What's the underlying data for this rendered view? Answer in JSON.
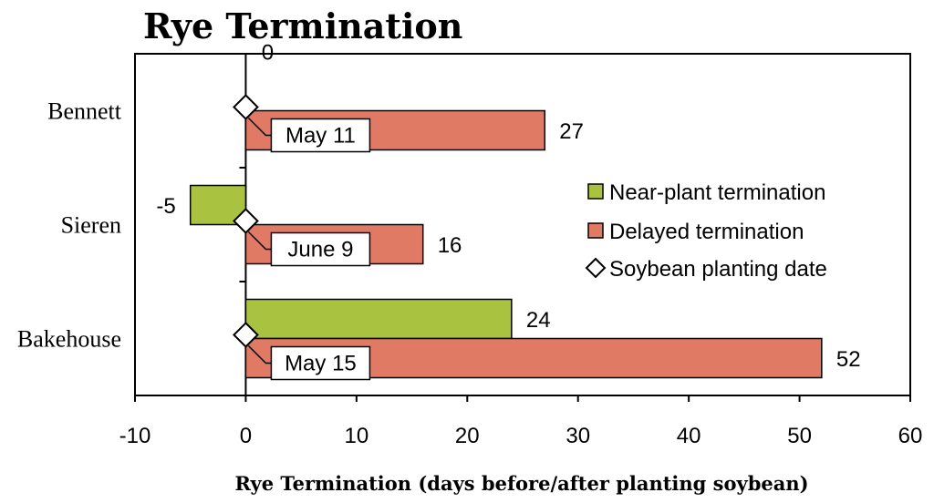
{
  "chart_data": {
    "type": "bar",
    "orientation": "horizontal",
    "title": "Rye Termination",
    "xlabel": "Rye Termination (days before/after planting soybean)",
    "xlim": [
      -10,
      60
    ],
    "xticks": [
      -10,
      0,
      10,
      20,
      30,
      40,
      50,
      60
    ],
    "categories": [
      "Bennett",
      "Sieren",
      "Bakehouse"
    ],
    "series": [
      {
        "name": "Near-plant termination",
        "color": "#a9c23f",
        "values": [
          0,
          -5,
          24
        ],
        "labels": [
          "0",
          "-5",
          "24"
        ]
      },
      {
        "name": "Delayed termination",
        "color": "#e07a65",
        "values": [
          27,
          16,
          52
        ],
        "labels": [
          "27",
          "16",
          "52"
        ]
      }
    ],
    "planting": {
      "name": "Soybean planting date",
      "x": 0,
      "dates": [
        "May 11",
        "June 9",
        "May 15"
      ]
    },
    "legend_position": "right"
  }
}
